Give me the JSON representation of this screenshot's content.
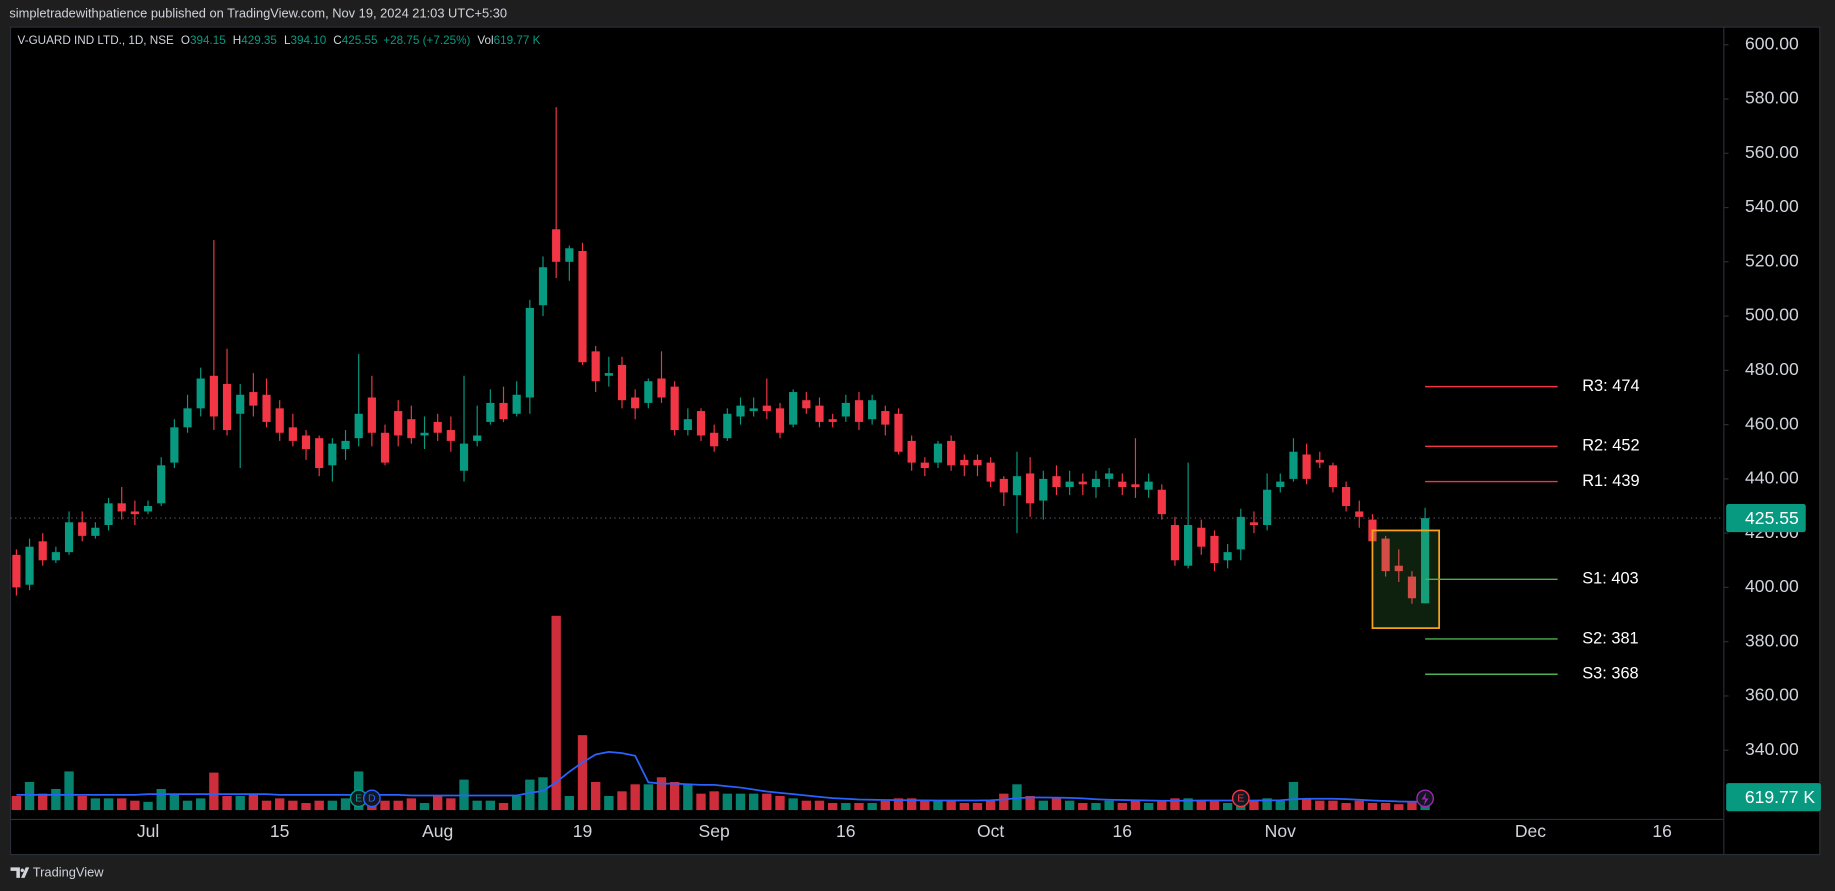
{
  "header": {
    "text": "simpletradewithpatience published on TradingView.com, Nov 19, 2024 21:03 UTC+5:30"
  },
  "footer": {
    "brand": "TradingView"
  },
  "chart_data": {
    "type": "candlestick",
    "title": "V-GUARD IND LTD., 1D, NSE",
    "legend": {
      "fields": [
        {
          "key": "O",
          "value": "394.15"
        },
        {
          "key": "H",
          "value": "429.35"
        },
        {
          "key": "L",
          "value": "394.10"
        },
        {
          "key": "C",
          "value": "425.55"
        }
      ],
      "change": "+28.75 (+7.25%)",
      "volume": {
        "key": "Vol",
        "value": "619.77 K"
      }
    },
    "up_color": "#089981",
    "down_color": "#f23645",
    "volume_ma_color": "#2962ff",
    "categories": [
      null,
      null,
      null,
      null,
      null,
      null,
      null,
      null,
      null,
      null,
      "Jul",
      null,
      null,
      null,
      null,
      null,
      null,
      null,
      null,
      null,
      "15",
      null,
      null,
      null,
      null,
      null,
      null,
      null,
      null,
      null,
      null,
      null,
      "Aug",
      null,
      null,
      null,
      null,
      null,
      null,
      null,
      null,
      null,
      null,
      "19",
      null,
      null,
      null,
      null,
      null,
      null,
      null,
      null,
      null,
      "Sep",
      null,
      null,
      null,
      null,
      null,
      null,
      null,
      null,
      null,
      "16",
      null,
      null,
      null,
      null,
      null,
      null,
      null,
      null,
      null,
      null,
      "Oct",
      null,
      null,
      null,
      null,
      null,
      null,
      null,
      null,
      null,
      "16",
      null,
      null,
      null,
      null,
      null,
      null,
      null,
      null,
      null,
      null,
      null,
      "Nov",
      null,
      null,
      null,
      null,
      null,
      null,
      null,
      null,
      null,
      null,
      null,
      null,
      null,
      null,
      null,
      null,
      null,
      null,
      "Dec",
      null,
      null,
      null,
      null,
      null,
      null,
      null,
      null,
      null,
      "16",
      null,
      null,
      null,
      null
    ],
    "open": [
      412,
      401,
      417,
      410,
      413,
      424,
      419,
      423,
      431,
      428,
      428,
      431,
      446,
      459,
      466,
      478,
      475,
      464,
      472,
      471,
      466,
      459,
      456,
      455,
      445,
      451,
      455,
      470,
      457,
      465,
      462,
      456,
      461,
      458,
      443,
      454,
      461,
      468,
      464,
      470,
      504,
      532,
      520,
      524,
      487,
      478,
      482,
      470,
      468,
      477,
      474,
      458,
      465,
      457,
      455,
      463,
      465,
      467,
      466,
      460,
      469,
      467,
      462,
      463,
      469,
      462,
      465,
      464,
      454,
      446,
      446,
      454,
      447,
      447,
      446,
      440,
      434,
      442,
      432,
      441,
      437,
      439,
      437,
      440,
      439,
      438,
      436,
      436,
      423,
      408,
      422,
      419,
      410,
      414,
      424,
      423,
      437,
      440,
      449,
      447,
      445,
      437,
      428,
      425,
      418,
      408,
      404,
      394.15,
      null,
      null,
      null,
      null,
      null,
      null,
      null,
      null,
      null,
      null,
      null,
      null,
      null,
      null,
      null,
      null,
      null,
      null,
      null,
      null,
      null,
      null
    ],
    "high": [
      414,
      418,
      420,
      415,
      428,
      428,
      424,
      433,
      437,
      432,
      432,
      448,
      462,
      471,
      481,
      528,
      488,
      475,
      479,
      477,
      469,
      464,
      458,
      456,
      455,
      458,
      486,
      478,
      460,
      469,
      467,
      463,
      464,
      463,
      478,
      467,
      473,
      474,
      476,
      506,
      522,
      577,
      526,
      527,
      489,
      485,
      485,
      473,
      477,
      487,
      476,
      466,
      466,
      460,
      466,
      470,
      470,
      477,
      468,
      473,
      472,
      470,
      464,
      471,
      472,
      471,
      467,
      466,
      456,
      448,
      454,
      456,
      449,
      449,
      448,
      441,
      450,
      448,
      443,
      445,
      443,
      442,
      443,
      444,
      442,
      455,
      442,
      438,
      426,
      446,
      425,
      421,
      416,
      429,
      428,
      442,
      442,
      455,
      453,
      450,
      446,
      439,
      432,
      427,
      419,
      414,
      406,
      429.35,
      null,
      null,
      null,
      null,
      null,
      null,
      null,
      null,
      null,
      null,
      null,
      null,
      null,
      null,
      null,
      null,
      null,
      null,
      null,
      null,
      null,
      null
    ],
    "low": [
      397,
      399,
      408,
      409,
      412,
      417,
      418,
      421,
      425,
      423,
      427,
      430,
      444,
      457,
      463,
      458,
      456,
      444,
      463,
      459,
      454,
      452,
      447,
      441,
      439,
      447,
      452,
      452,
      445,
      452,
      453,
      451,
      454,
      450,
      439,
      452,
      460,
      461,
      463,
      464,
      500,
      514,
      513,
      482,
      472,
      474,
      466,
      462,
      466,
      468,
      456,
      456,
      454,
      450,
      454,
      460,
      463,
      462,
      455,
      459,
      464,
      459,
      459,
      461,
      458,
      460,
      456,
      449,
      443,
      441,
      444,
      443,
      441,
      441,
      437,
      430,
      420,
      426,
      425,
      434,
      434,
      434,
      433,
      437,
      434,
      433,
      433,
      425,
      408,
      407,
      412,
      406,
      407,
      410,
      420,
      421,
      435,
      439,
      438,
      444,
      435,
      428,
      422,
      416,
      404,
      402,
      394,
      394.1,
      null,
      null,
      null,
      null,
      null,
      null,
      null,
      null,
      null,
      null,
      null,
      null,
      null,
      null,
      null,
      null,
      null,
      null,
      null,
      null,
      null,
      null
    ],
    "close": [
      400,
      415,
      410,
      413,
      424,
      419,
      422,
      431,
      428,
      427,
      430,
      445,
      459,
      466,
      477,
      463,
      458,
      471,
      467,
      461,
      457,
      454,
      451,
      444,
      453,
      454,
      464,
      457,
      446,
      456,
      455,
      457,
      457,
      454,
      453,
      456,
      468,
      462,
      471,
      503,
      518,
      520,
      525,
      483,
      476,
      479,
      469,
      466,
      476,
      470,
      458,
      462,
      456,
      452,
      464,
      467,
      466,
      465,
      457,
      472,
      466,
      461,
      461,
      468,
      461,
      469,
      460,
      450,
      446,
      444,
      453,
      445,
      445,
      445,
      439,
      435,
      441,
      431,
      440,
      437,
      439,
      438,
      440,
      442,
      437,
      437,
      439,
      427,
      410,
      423,
      415,
      409,
      413,
      426,
      423,
      436,
      439,
      450,
      440,
      446,
      437,
      430,
      426,
      417,
      406,
      406,
      396,
      425.55,
      null,
      null,
      null,
      null,
      null,
      null,
      null,
      null,
      null,
      null,
      null,
      null,
      null,
      null,
      null,
      null,
      null,
      null,
      null,
      null,
      null,
      null
    ],
    "volume": [
      1062,
      2124,
      1239,
      1593,
      2921,
      1062,
      885,
      885,
      885,
      708,
      620,
      1593,
      1239,
      708,
      885,
      2832,
      1062,
      1062,
      1239,
      708,
      885,
      708,
      531,
      708,
      708,
      885,
      2921,
      708,
      708,
      708,
      885,
      531,
      1062,
      885,
      2301,
      708,
      708,
      531,
      1062,
      2301,
      2478,
      14691,
      1062,
      5664,
      2124,
      1062,
      1416,
      1947,
      1947,
      2478,
      2124,
      1947,
      1239,
      1416,
      1239,
      1239,
      1239,
      1239,
      1062,
      885,
      708,
      708,
      531,
      531,
      531,
      531,
      708,
      885,
      885,
      708,
      708,
      708,
      531,
      531,
      708,
      1239,
      1947,
      1062,
      708,
      885,
      708,
      531,
      531,
      708,
      531,
      708,
      531,
      708,
      885,
      885,
      708,
      708,
      531,
      708,
      708,
      885,
      708,
      2124,
      885,
      708,
      708,
      531,
      708,
      531,
      531,
      443,
      620,
      619.77,
      null,
      null,
      null,
      null,
      null,
      null,
      null,
      null,
      null,
      null,
      null,
      null,
      null,
      null,
      null,
      null,
      null,
      null,
      null,
      null,
      null,
      null
    ],
    "volume_ma": [
      1150,
      1150,
      1150,
      1150,
      1150,
      1150,
      1150,
      1150,
      1150,
      1150,
      1200,
      1200,
      1200,
      1200,
      1200,
      1200,
      1200,
      1200,
      1200,
      1200,
      1150,
      1150,
      1150,
      1150,
      1150,
      1150,
      1150,
      1150,
      1150,
      1150,
      1100,
      1100,
      1100,
      1100,
      1100,
      1100,
      1100,
      1100,
      1100,
      1300,
      1450,
      2100,
      2900,
      3600,
      4200,
      4400,
      4300,
      4100,
      2100,
      2000,
      2000,
      1950,
      1900,
      1900,
      1800,
      1700,
      1550,
      1400,
      1300,
      1200,
      1100,
      1000,
      900,
      850,
      800,
      780,
      760,
      750,
      740,
      730,
      720,
      720,
      720,
      720,
      740,
      800,
      900,
      950,
      950,
      940,
      920,
      880,
      820,
      780,
      760,
      740,
      720,
      700,
      700,
      710,
      720,
      720,
      720,
      720,
      720,
      730,
      740,
      820,
      850,
      850,
      850,
      830,
      780,
      720,
      680,
      650,
      640,
      640,
      null,
      null,
      null,
      null,
      null,
      null,
      null,
      null,
      null,
      null,
      null,
      null,
      null,
      null,
      null,
      null,
      null,
      null,
      null,
      null,
      null,
      null
    ],
    "ylim": [
      314.5,
      606.5
    ],
    "yticks": [
      {
        "value": 340,
        "label": "340.00"
      },
      {
        "value": 360,
        "label": "360.00"
      },
      {
        "value": 380,
        "label": "380.00"
      },
      {
        "value": 400,
        "label": "400.00"
      },
      {
        "value": 420,
        "label": "420.00"
      },
      {
        "value": 440,
        "label": "440.00"
      },
      {
        "value": 460,
        "label": "460.00"
      },
      {
        "value": 480,
        "label": "480.00"
      },
      {
        "value": 500,
        "label": "500.00"
      },
      {
        "value": 520,
        "label": "520.00"
      },
      {
        "value": 540,
        "label": "540.00"
      },
      {
        "value": 560,
        "label": "560.00"
      },
      {
        "value": 580,
        "label": "580.00"
      },
      {
        "value": 600,
        "label": "600.00"
      }
    ],
    "grid": false,
    "last_price": {
      "value": 425.55,
      "label": "425.55"
    },
    "last_volume": {
      "value": 619.77,
      "label": "619.77 K"
    },
    "levels": [
      {
        "label": "R3: 474",
        "value": 474,
        "color": "#f23645"
      },
      {
        "label": "R2: 452",
        "value": 452,
        "color": "#f23645"
      },
      {
        "label": "R1: 439",
        "value": 439,
        "color": "#f23645"
      },
      {
        "label": "S1: 403",
        "value": 403,
        "color": "#4caf50"
      },
      {
        "label": "S2: 381",
        "value": 381,
        "color": "#4caf50"
      },
      {
        "label": "S3: 368",
        "value": 368,
        "color": "#4caf50"
      }
    ],
    "highlight": {
      "top": 421,
      "bottom": 385
    },
    "events": [
      {
        "label": "E",
        "color": "#089981"
      },
      {
        "label": "D",
        "color": "#2962ff"
      },
      {
        "label": "E",
        "color": "#f23645"
      }
    ]
  }
}
